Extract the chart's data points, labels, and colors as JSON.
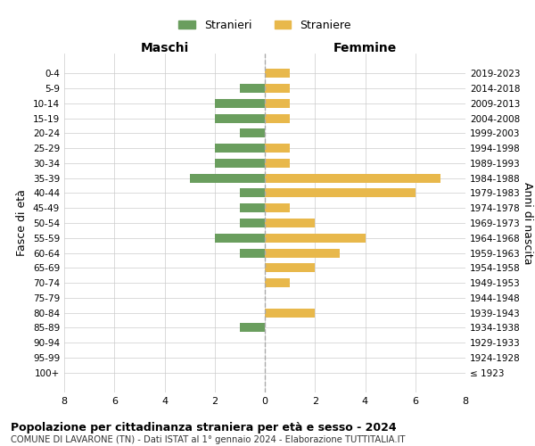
{
  "age_groups": [
    "100+",
    "95-99",
    "90-94",
    "85-89",
    "80-84",
    "75-79",
    "70-74",
    "65-69",
    "60-64",
    "55-59",
    "50-54",
    "45-49",
    "40-44",
    "35-39",
    "30-34",
    "25-29",
    "20-24",
    "15-19",
    "10-14",
    "5-9",
    "0-4"
  ],
  "birth_years": [
    "≤ 1923",
    "1924-1928",
    "1929-1933",
    "1934-1938",
    "1939-1943",
    "1944-1948",
    "1949-1953",
    "1954-1958",
    "1959-1963",
    "1964-1968",
    "1969-1973",
    "1974-1978",
    "1979-1983",
    "1984-1988",
    "1989-1993",
    "1994-1998",
    "1999-2003",
    "2004-2008",
    "2009-2013",
    "2014-2018",
    "2019-2023"
  ],
  "males": [
    0,
    0,
    0,
    1,
    0,
    0,
    0,
    0,
    1,
    2,
    1,
    1,
    1,
    3,
    2,
    2,
    1,
    2,
    2,
    1,
    0
  ],
  "females": [
    0,
    0,
    0,
    0,
    2,
    0,
    1,
    2,
    3,
    4,
    2,
    1,
    6,
    7,
    1,
    1,
    0,
    1,
    1,
    1,
    1
  ],
  "male_color": "#6a9e5e",
  "female_color": "#e8b84b",
  "title_main": "Popolazione per cittadinanza straniera per età e sesso - 2024",
  "title_sub": "COMUNE DI LAVARONE (TN) - Dati ISTAT al 1° gennaio 2024 - Elaborazione TUTTITALIA.IT",
  "xlabel_left": "Maschi",
  "xlabel_right": "Femmine",
  "ylabel_left": "Fasce di età",
  "ylabel_right": "Anni di nascita",
  "legend_male": "Stranieri",
  "legend_female": "Straniere",
  "xlim": 8,
  "background_color": "#ffffff",
  "grid_color": "#cccccc"
}
